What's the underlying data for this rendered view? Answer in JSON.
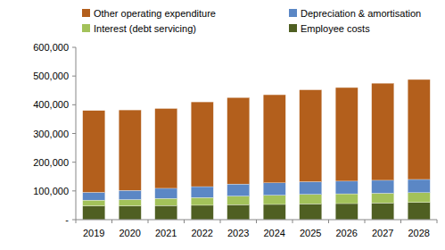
{
  "chart_data": {
    "type": "bar",
    "stacked": true,
    "grid": false,
    "legend": "top",
    "categories": [
      "2019",
      "2020",
      "2021",
      "2022",
      "2023",
      "2024",
      "2025",
      "2026",
      "2027",
      "2028"
    ],
    "series": [
      {
        "name": "Employee costs",
        "color": "#4f5f22",
        "values": [
          48000,
          48000,
          49000,
          50000,
          52000,
          53000,
          55000,
          56000,
          58000,
          60000
        ]
      },
      {
        "name": "Interest (debt servicing)",
        "color": "#a3c25a",
        "values": [
          20000,
          22000,
          25000,
          27000,
          30000,
          32000,
          33000,
          34000,
          34000,
          34000
        ]
      },
      {
        "name": "Depreciation & amortisation",
        "color": "#5b87c5",
        "values": [
          27000,
          32000,
          35000,
          38000,
          42000,
          43000,
          44000,
          44000,
          45000,
          46000
        ]
      },
      {
        "name": "Other operating expenditure",
        "color": "#b35f1c",
        "values": [
          285000,
          280000,
          278000,
          295000,
          301000,
          307000,
          320000,
          326000,
          338000,
          348000
        ]
      }
    ],
    "ylim": [
      0,
      600000
    ],
    "yticks": [
      {
        "value": 0,
        "label": "-"
      },
      {
        "value": 100000,
        "label": "100,000"
      },
      {
        "value": 200000,
        "label": "200,000"
      },
      {
        "value": 300000,
        "label": "300,000"
      },
      {
        "value": 400000,
        "label": "400,000"
      },
      {
        "value": 500000,
        "label": "500,000"
      },
      {
        "value": 600000,
        "label": "600,000"
      }
    ]
  }
}
